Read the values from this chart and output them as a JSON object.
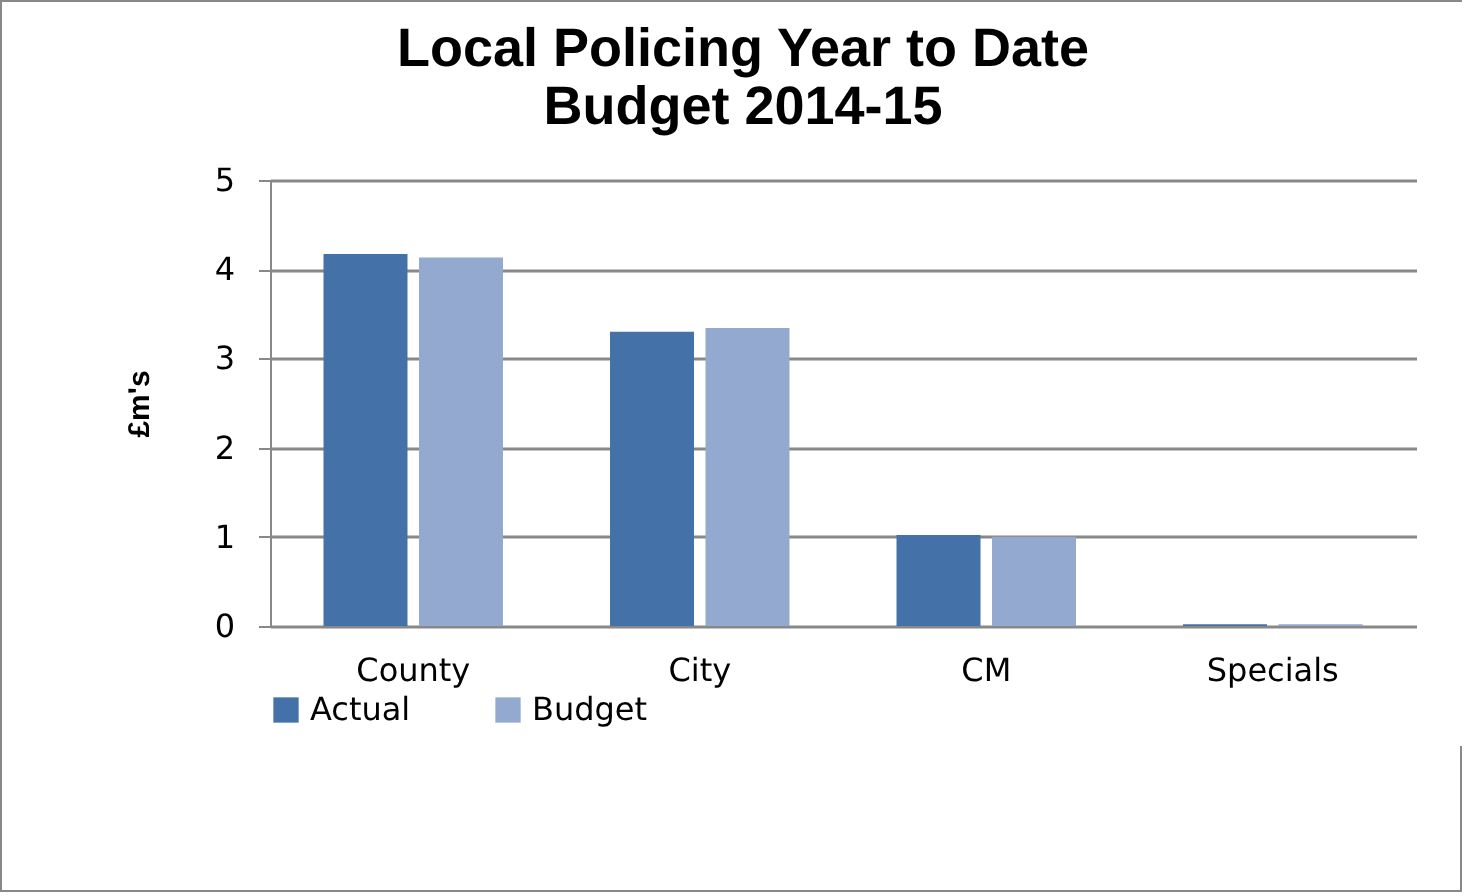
{
  "chart_data": {
    "type": "bar",
    "title": [
      "Local Policing Year to Date",
      "Budget 2014-15"
    ],
    "ylabel": "£m's",
    "categories": [
      "County",
      "City",
      "CM",
      "Specials"
    ],
    "series": [
      {
        "name": "Actual",
        "color": "#4472a8",
        "values": [
          4.17,
          3.3,
          1.02,
          0.02
        ]
      },
      {
        "name": "Budget",
        "color": "#94a9d0",
        "values": [
          4.13,
          3.34,
          1.0,
          0.02
        ]
      }
    ],
    "ylim": [
      0,
      5
    ],
    "yticks": [
      0,
      1,
      2,
      3,
      4,
      5
    ],
    "grid": "y",
    "legend": "bottom"
  }
}
